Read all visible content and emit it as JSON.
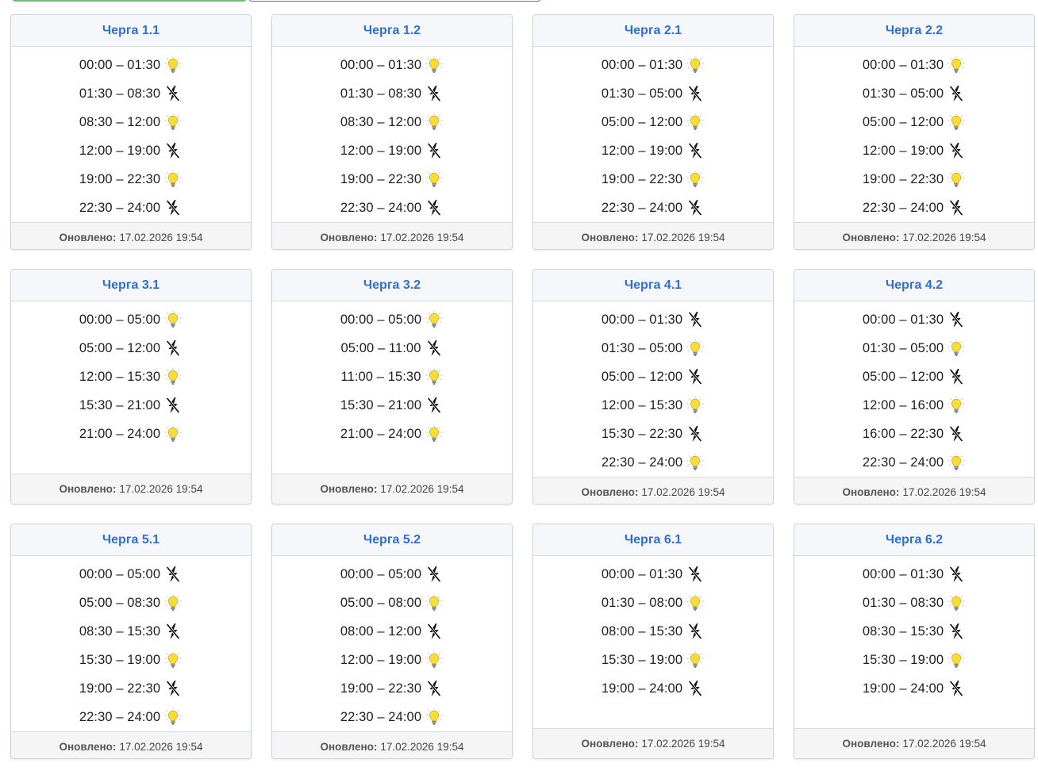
{
  "top_tabs": [
    "",
    ""
  ],
  "footer_label": "Оновлено:",
  "queues": [
    {
      "title": "Черга 1.1",
      "updated": "17.02.2026 19:54",
      "slots": [
        {
          "time": "00:00 – 01:30",
          "status": "on"
        },
        {
          "time": "01:30 – 08:30",
          "status": "off"
        },
        {
          "time": "08:30 – 12:00",
          "status": "on"
        },
        {
          "time": "12:00 – 19:00",
          "status": "off"
        },
        {
          "time": "19:00 – 22:30",
          "status": "on"
        },
        {
          "time": "22:30 – 24:00",
          "status": "off"
        }
      ]
    },
    {
      "title": "Черга 1.2",
      "updated": "17.02.2026 19:54",
      "slots": [
        {
          "time": "00:00 – 01:30",
          "status": "on"
        },
        {
          "time": "01:30 – 08:30",
          "status": "off"
        },
        {
          "time": "08:30 – 12:00",
          "status": "on"
        },
        {
          "time": "12:00 – 19:00",
          "status": "off"
        },
        {
          "time": "19:00 – 22:30",
          "status": "on"
        },
        {
          "time": "22:30 – 24:00",
          "status": "off"
        }
      ]
    },
    {
      "title": "Черга 2.1",
      "updated": "17.02.2026 19:54",
      "slots": [
        {
          "time": "00:00 – 01:30",
          "status": "on"
        },
        {
          "time": "01:30 – 05:00",
          "status": "off"
        },
        {
          "time": "05:00 – 12:00",
          "status": "on"
        },
        {
          "time": "12:00 – 19:00",
          "status": "off"
        },
        {
          "time": "19:00 – 22:30",
          "status": "on"
        },
        {
          "time": "22:30 – 24:00",
          "status": "off"
        }
      ]
    },
    {
      "title": "Черга 2.2",
      "updated": "17.02.2026 19:54",
      "slots": [
        {
          "time": "00:00 – 01:30",
          "status": "on"
        },
        {
          "time": "01:30 – 05:00",
          "status": "off"
        },
        {
          "time": "05:00 – 12:00",
          "status": "on"
        },
        {
          "time": "12:00 – 19:00",
          "status": "off"
        },
        {
          "time": "19:00 – 22:30",
          "status": "on"
        },
        {
          "time": "22:30 – 24:00",
          "status": "off"
        }
      ]
    },
    {
      "title": "Черга 3.1",
      "updated": "17.02.2026 19:54",
      "slots": [
        {
          "time": "00:00 – 05:00",
          "status": "on"
        },
        {
          "time": "05:00 – 12:00",
          "status": "off"
        },
        {
          "time": "12:00 – 15:30",
          "status": "on"
        },
        {
          "time": "15:30 – 21:00",
          "status": "off"
        },
        {
          "time": "21:00 – 24:00",
          "status": "on"
        }
      ]
    },
    {
      "title": "Черга 3.2",
      "updated": "17.02.2026 19:54",
      "slots": [
        {
          "time": "00:00 – 05:00",
          "status": "on"
        },
        {
          "time": "05:00 – 11:00",
          "status": "off"
        },
        {
          "time": "11:00 – 15:30",
          "status": "on"
        },
        {
          "time": "15:30 – 21:00",
          "status": "off"
        },
        {
          "time": "21:00 – 24:00",
          "status": "on"
        }
      ]
    },
    {
      "title": "Черга 4.1",
      "updated": "17.02.2026 19:54",
      "slots": [
        {
          "time": "00:00 – 01:30",
          "status": "off"
        },
        {
          "time": "01:30 – 05:00",
          "status": "on"
        },
        {
          "time": "05:00 – 12:00",
          "status": "off"
        },
        {
          "time": "12:00 – 15:30",
          "status": "on"
        },
        {
          "time": "15:30 – 22:30",
          "status": "off"
        },
        {
          "time": "22:30 – 24:00",
          "status": "on"
        }
      ]
    },
    {
      "title": "Черга 4.2",
      "updated": "17.02.2026 19:54",
      "slots": [
        {
          "time": "00:00 – 01:30",
          "status": "off"
        },
        {
          "time": "01:30 – 05:00",
          "status": "on"
        },
        {
          "time": "05:00 – 12:00",
          "status": "off"
        },
        {
          "time": "12:00 – 16:00",
          "status": "on"
        },
        {
          "time": "16:00 – 22:30",
          "status": "off"
        },
        {
          "time": "22:30 – 24:00",
          "status": "on"
        }
      ]
    },
    {
      "title": "Черга 5.1",
      "updated": "17.02.2026 19:54",
      "slots": [
        {
          "time": "00:00 – 05:00",
          "status": "off"
        },
        {
          "time": "05:00 – 08:30",
          "status": "on"
        },
        {
          "time": "08:30 – 15:30",
          "status": "off"
        },
        {
          "time": "15:30 – 19:00",
          "status": "on"
        },
        {
          "time": "19:00 – 22:30",
          "status": "off"
        },
        {
          "time": "22:30 – 24:00",
          "status": "on"
        }
      ]
    },
    {
      "title": "Черга 5.2",
      "updated": "17.02.2026 19:54",
      "slots": [
        {
          "time": "00:00 – 05:00",
          "status": "off"
        },
        {
          "time": "05:00 – 08:00",
          "status": "on"
        },
        {
          "time": "08:00 – 12:00",
          "status": "off"
        },
        {
          "time": "12:00 – 19:00",
          "status": "on"
        },
        {
          "time": "19:00 – 22:30",
          "status": "off"
        },
        {
          "time": "22:30 – 24:00",
          "status": "on"
        }
      ]
    },
    {
      "title": "Черга 6.1",
      "updated": "17.02.2026 19:54",
      "slots": [
        {
          "time": "00:00 – 01:30",
          "status": "off"
        },
        {
          "time": "01:30 – 08:00",
          "status": "on"
        },
        {
          "time": "08:00 – 15:30",
          "status": "off"
        },
        {
          "time": "15:30 – 19:00",
          "status": "on"
        },
        {
          "time": "19:00 – 24:00",
          "status": "off"
        }
      ]
    },
    {
      "title": "Черга 6.2",
      "updated": "17.02.2026 19:54",
      "slots": [
        {
          "time": "00:00 – 01:30",
          "status": "off"
        },
        {
          "time": "01:30 – 08:30",
          "status": "on"
        },
        {
          "time": "08:30 – 15:30",
          "status": "off"
        },
        {
          "time": "15:30 – 19:00",
          "status": "on"
        },
        {
          "time": "19:00 – 24:00",
          "status": "off"
        }
      ]
    }
  ],
  "colors": {
    "title": "#2f6ed8",
    "bulb": "#f7dc3a",
    "off_icon": "#111111"
  }
}
